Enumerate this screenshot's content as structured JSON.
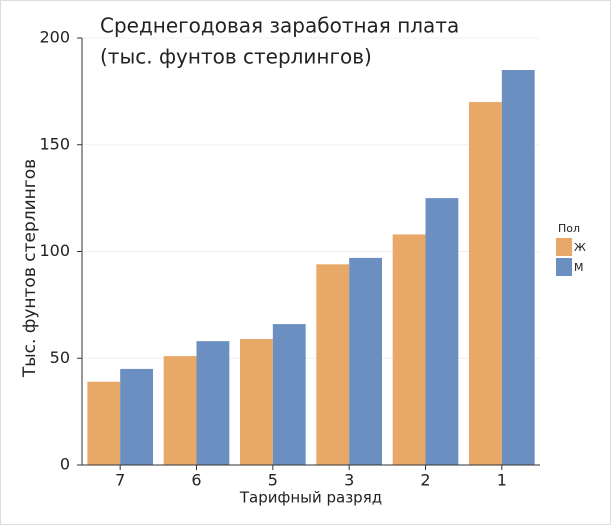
{
  "chart_data": {
    "type": "bar",
    "title": [
      "Среднегодовая заработная плата",
      "(тыс. фунтов стерлингов)"
    ],
    "x_label": "Тарифный разряд",
    "y_label": "Тыс. фунтов стерлингов",
    "legend_title": "Пол",
    "categories": [
      "7",
      "6",
      "5",
      "3",
      "2",
      "1"
    ],
    "series": [
      {
        "name": "Ж",
        "color": "#e8a868",
        "values": [
          39,
          51,
          59,
          94,
          108,
          170
        ]
      },
      {
        "name": "М",
        "color": "#6a8fc0",
        "values": [
          45,
          58,
          66,
          97,
          125,
          185
        ]
      }
    ],
    "ylim": [
      0,
      200
    ],
    "yticks": [
      0,
      50,
      100,
      150,
      200
    ],
    "grid": true
  }
}
